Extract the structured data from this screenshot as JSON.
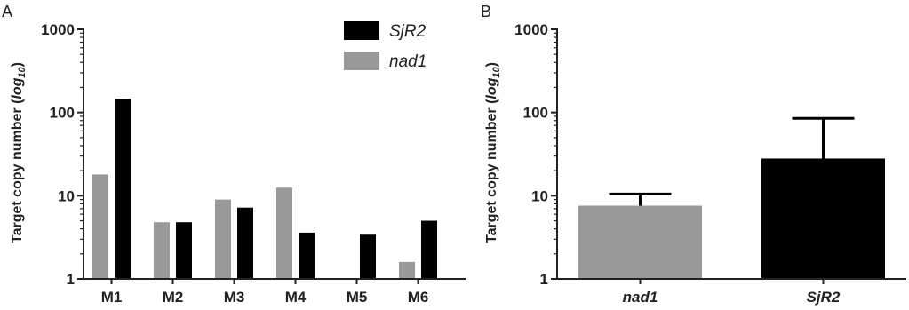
{
  "colors": {
    "nad1": "#999999",
    "SjR2": "#000000",
    "axis": "#222222"
  },
  "chart_data": [
    {
      "panel": "A",
      "type": "bar",
      "yscale": "log",
      "ylim": [
        1,
        1000
      ],
      "yticks": [
        "1",
        "10",
        "100",
        "1000"
      ],
      "ylabel": "Target copy number (log10)",
      "ylabel_main": "Target copy number (",
      "ylabel_log": "log",
      "ylabel_sub": "10",
      "ylabel_close": ")",
      "categories": [
        "M1",
        "M2",
        "M3",
        "M4",
        "M5",
        "M6"
      ],
      "legend": [
        "SjR2",
        "nad1"
      ],
      "series": [
        {
          "name": "nad1",
          "color": "#999999",
          "values": [
            18,
            4.8,
            9,
            12.5,
            null,
            1.6
          ]
        },
        {
          "name": "SjR2",
          "color": "#000000",
          "values": [
            145,
            4.8,
            7.2,
            3.6,
            3.4,
            5
          ]
        }
      ]
    },
    {
      "panel": "B",
      "type": "bar",
      "yscale": "log",
      "ylim": [
        1,
        1000
      ],
      "yticks": [
        "1",
        "10",
        "100",
        "1000"
      ],
      "ylabel": "Target copy number (log10)",
      "ylabel_main": "Target copy number (",
      "ylabel_log": "log",
      "ylabel_sub": "10",
      "ylabel_close": ")",
      "categories": [
        "nad1",
        "SjR2"
      ],
      "values": [
        7.6,
        28
      ],
      "error_upper": [
        10.5,
        85
      ],
      "colors": [
        "#999999",
        "#000000"
      ]
    }
  ]
}
